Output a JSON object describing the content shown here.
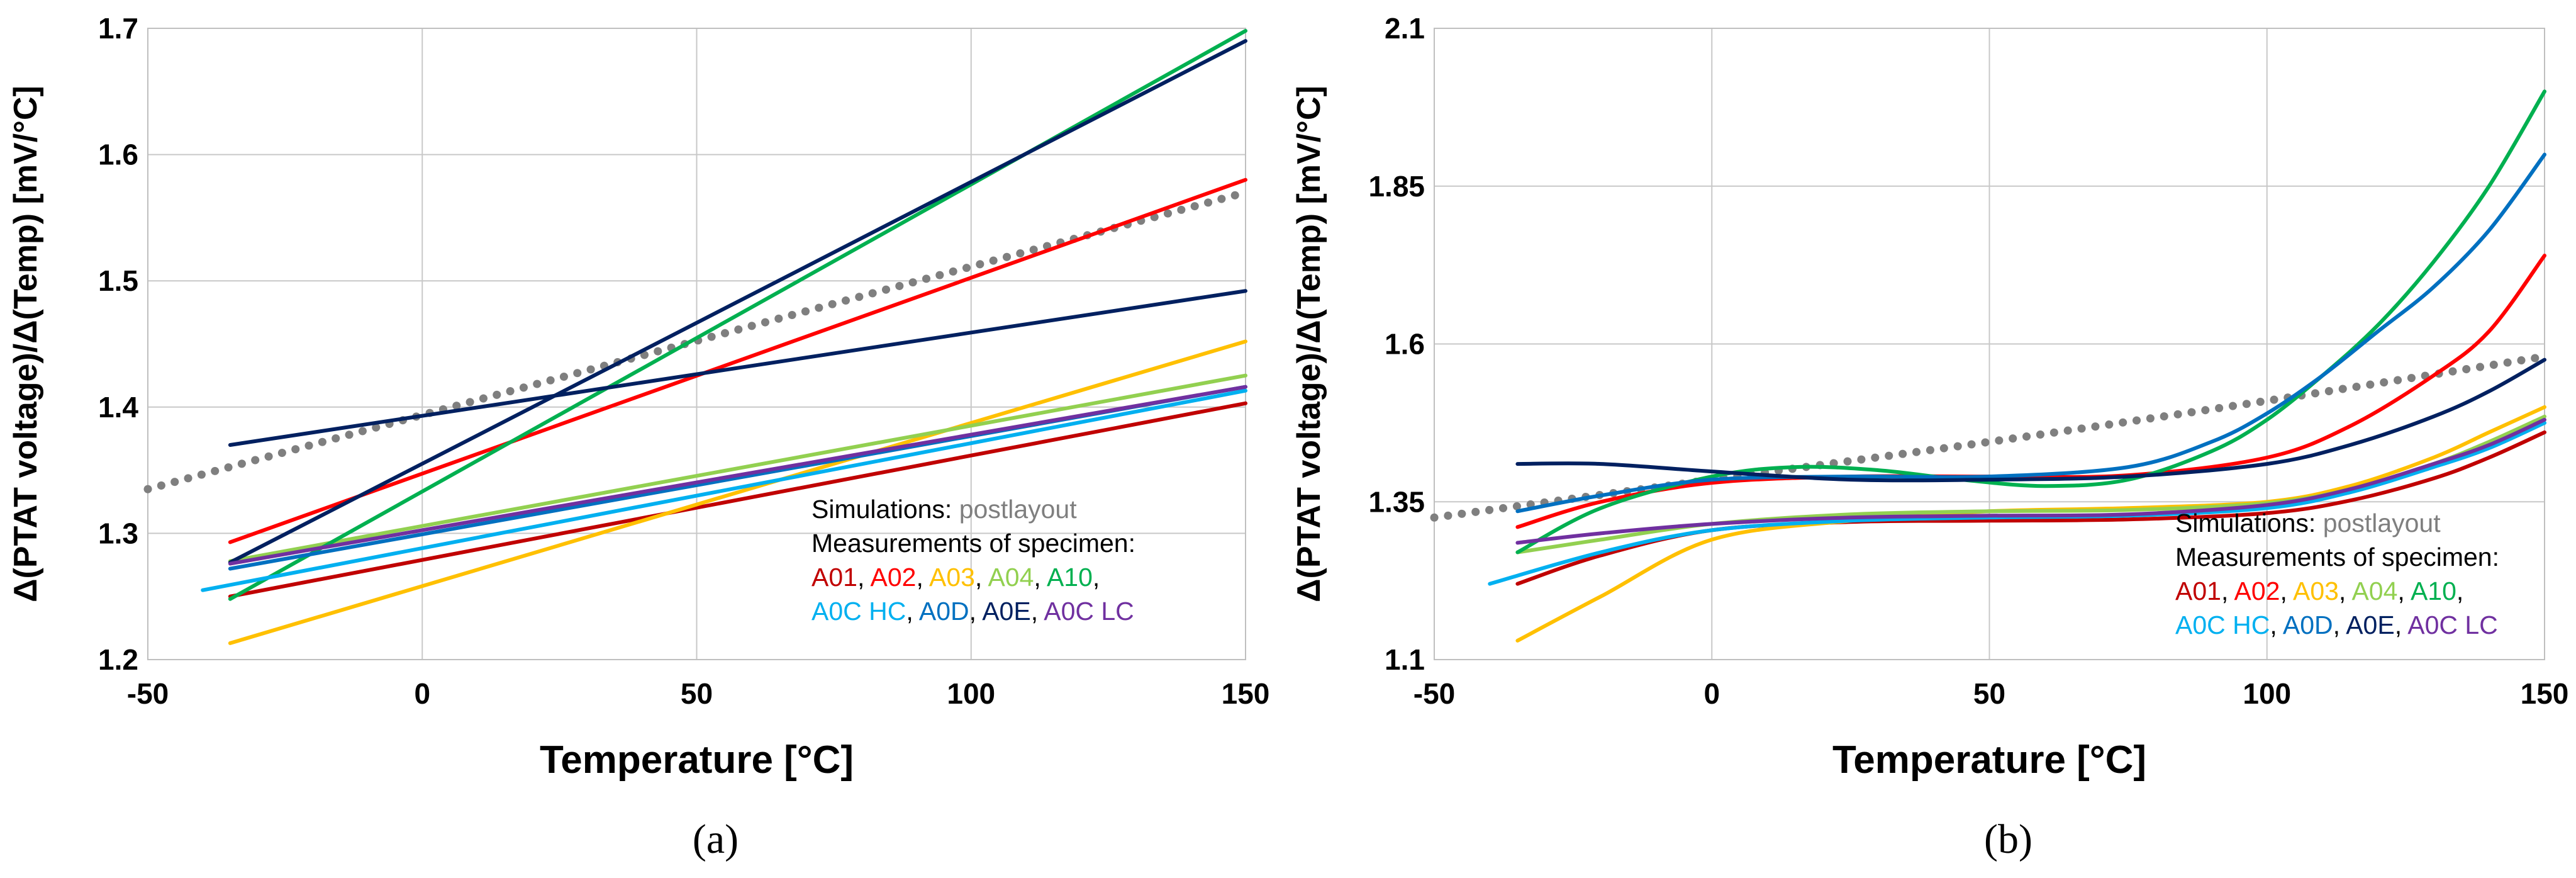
{
  "colors": {
    "A01": "#c00000",
    "A02": "#ff0000",
    "A03": "#ffc000",
    "A04": "#92d050",
    "A10": "#00b050",
    "A0C HC": "#00b0f0",
    "A0D": "#0070c0",
    "A0E": "#002060",
    "A0C LC": "#7030a0",
    "postlayout": "#7f7f7f"
  },
  "chart_data": [
    {
      "type": "line",
      "panel_label": "(a)",
      "xlabel": "Temperature [°C]",
      "ylabel": "Δ(PTAT voltage)/Δ(Temp) [mV/°C]",
      "xlim": [
        -50,
        150
      ],
      "ylim": [
        1.2,
        1.7
      ],
      "x_ticks": [
        -50,
        0,
        50,
        100,
        150
      ],
      "x_tick_labels": [
        "-50",
        "0",
        "50",
        "100",
        "150"
      ],
      "y_ticks": [
        1.2,
        1.3,
        1.4,
        1.5,
        1.6,
        1.7
      ],
      "y_tick_labels": [
        "1.2",
        "1.3",
        "1.4",
        "1.5",
        "1.6",
        "1.7"
      ],
      "grid": true,
      "legend": {
        "position": "bottom-right",
        "sim_prefix": "Simulations: ",
        "sim_name": "postlayout",
        "meas_label": "Measurements of specimen:",
        "line1": [
          "A01",
          "A02",
          "A03",
          "A04",
          "A10"
        ],
        "line2": [
          "A0C HC",
          "A0D",
          "A0E",
          "A0C LC"
        ]
      },
      "series": [
        {
          "name": "postlayout",
          "style": "dotted",
          "x": [
            -50,
            150
          ],
          "y": [
            1.335,
            1.57
          ]
        },
        {
          "name": "A01",
          "x": [
            -35,
            150
          ],
          "y": [
            1.25,
            1.403
          ]
        },
        {
          "name": "A02",
          "x": [
            -35,
            150
          ],
          "y": [
            1.293,
            1.58
          ]
        },
        {
          "name": "A03",
          "x": [
            -35,
            150
          ],
          "y": [
            1.213,
            1.452
          ]
        },
        {
          "name": "A04",
          "x": [
            -35,
            150
          ],
          "y": [
            1.278,
            1.425
          ]
        },
        {
          "name": "A10",
          "x": [
            -35,
            150
          ],
          "y": [
            1.248,
            1.698
          ]
        },
        {
          "name": "A0C HC",
          "x": [
            -40,
            150
          ],
          "y": [
            1.255,
            1.413
          ]
        },
        {
          "name": "A0D",
          "x": [
            -35,
            150
          ],
          "y": [
            1.272,
            1.416
          ]
        },
        {
          "name": "A0E",
          "x": [
            -35,
            150
          ],
          "y": [
            1.37,
            1.492
          ]
        },
        {
          "name": "A0E",
          "x": [
            -35,
            150
          ],
          "y": [
            1.277,
            1.69
          ]
        },
        {
          "name": "A0C LC",
          "x": [
            -35,
            150
          ],
          "y": [
            1.276,
            1.416
          ]
        }
      ]
    },
    {
      "type": "line",
      "panel_label": "(b)",
      "xlabel": "Temperature [°C]",
      "ylabel": "Δ(PTAT voltage)/Δ(Temp) [mV/°C]",
      "xlim": [
        -50,
        150
      ],
      "ylim": [
        1.1,
        2.1
      ],
      "x_ticks": [
        -50,
        0,
        50,
        100,
        150
      ],
      "x_tick_labels": [
        "-50",
        "0",
        "50",
        "100",
        "150"
      ],
      "y_ticks": [
        1.1,
        1.35,
        1.6,
        1.85,
        2.1
      ],
      "y_tick_labels": [
        "1.1",
        "1.35",
        "1.6",
        "1.85",
        "2.1"
      ],
      "grid": true,
      "legend": {
        "position": "bottom-right",
        "sim_prefix": "Simulations: ",
        "sim_name": "postlayout",
        "meas_label": "Measurements of specimen:",
        "line1": [
          "A01",
          "A02",
          "A03",
          "A04",
          "A10"
        ],
        "line2": [
          "A0C HC",
          "A0D",
          "A0E",
          "A0C LC"
        ]
      },
      "series": [
        {
          "name": "postlayout",
          "style": "dotted",
          "x": [
            -50,
            0,
            50,
            100,
            150
          ],
          "y": [
            1.325,
            1.385,
            1.445,
            1.51,
            1.58
          ]
        },
        {
          "name": "A01",
          "x": [
            -35,
            -20,
            0,
            25,
            50,
            75,
            100,
            115,
            130,
            140,
            150
          ],
          "y": [
            1.22,
            1.265,
            1.305,
            1.318,
            1.32,
            1.322,
            1.332,
            1.352,
            1.387,
            1.42,
            1.46
          ]
        },
        {
          "name": "A02",
          "x": [
            -35,
            -20,
            0,
            25,
            50,
            75,
            100,
            115,
            130,
            140,
            150
          ],
          "y": [
            1.31,
            1.35,
            1.38,
            1.39,
            1.39,
            1.392,
            1.42,
            1.47,
            1.55,
            1.62,
            1.74
          ]
        },
        {
          "name": "A03",
          "x": [
            -35,
            -20,
            0,
            25,
            50,
            75,
            100,
            115,
            130,
            140,
            150
          ],
          "y": [
            1.13,
            1.2,
            1.29,
            1.32,
            1.335,
            1.34,
            1.35,
            1.375,
            1.42,
            1.46,
            1.5
          ]
        },
        {
          "name": "A04",
          "x": [
            -35,
            -20,
            0,
            25,
            50,
            75,
            100,
            115,
            130,
            140,
            150
          ],
          "y": [
            1.27,
            1.29,
            1.315,
            1.33,
            1.335,
            1.337,
            1.348,
            1.37,
            1.41,
            1.445,
            1.485
          ]
        },
        {
          "name": "A10",
          "x": [
            -35,
            -20,
            0,
            15,
            30,
            45,
            60,
            75,
            90,
            100,
            110,
            120,
            130,
            140,
            150
          ],
          "y": [
            1.27,
            1.34,
            1.39,
            1.405,
            1.4,
            1.385,
            1.375,
            1.385,
            1.43,
            1.48,
            1.55,
            1.63,
            1.73,
            1.85,
            2.0
          ]
        },
        {
          "name": "A0C HC",
          "x": [
            -40,
            -20,
            0,
            25,
            50,
            75,
            100,
            115,
            130,
            140,
            150
          ],
          "y": [
            1.22,
            1.27,
            1.305,
            1.32,
            1.325,
            1.328,
            1.34,
            1.365,
            1.405,
            1.435,
            1.475
          ]
        },
        {
          "name": "A0D",
          "x": [
            -35,
            -20,
            0,
            25,
            50,
            75,
            90,
            100,
            110,
            120,
            130,
            140,
            150
          ],
          "y": [
            1.335,
            1.36,
            1.385,
            1.39,
            1.39,
            1.405,
            1.445,
            1.49,
            1.55,
            1.62,
            1.69,
            1.78,
            1.9
          ]
        },
        {
          "name": "A0E",
          "x": [
            -35,
            -20,
            0,
            25,
            50,
            75,
            100,
            115,
            130,
            140,
            150
          ],
          "y": [
            1.41,
            1.41,
            1.398,
            1.385,
            1.385,
            1.39,
            1.41,
            1.44,
            1.485,
            1.525,
            1.575
          ]
        },
        {
          "name": "A0C LC",
          "x": [
            -35,
            -20,
            0,
            25,
            50,
            75,
            100,
            115,
            130,
            140,
            150
          ],
          "y": [
            1.285,
            1.3,
            1.315,
            1.325,
            1.328,
            1.33,
            1.345,
            1.37,
            1.41,
            1.44,
            1.48
          ]
        }
      ]
    }
  ]
}
